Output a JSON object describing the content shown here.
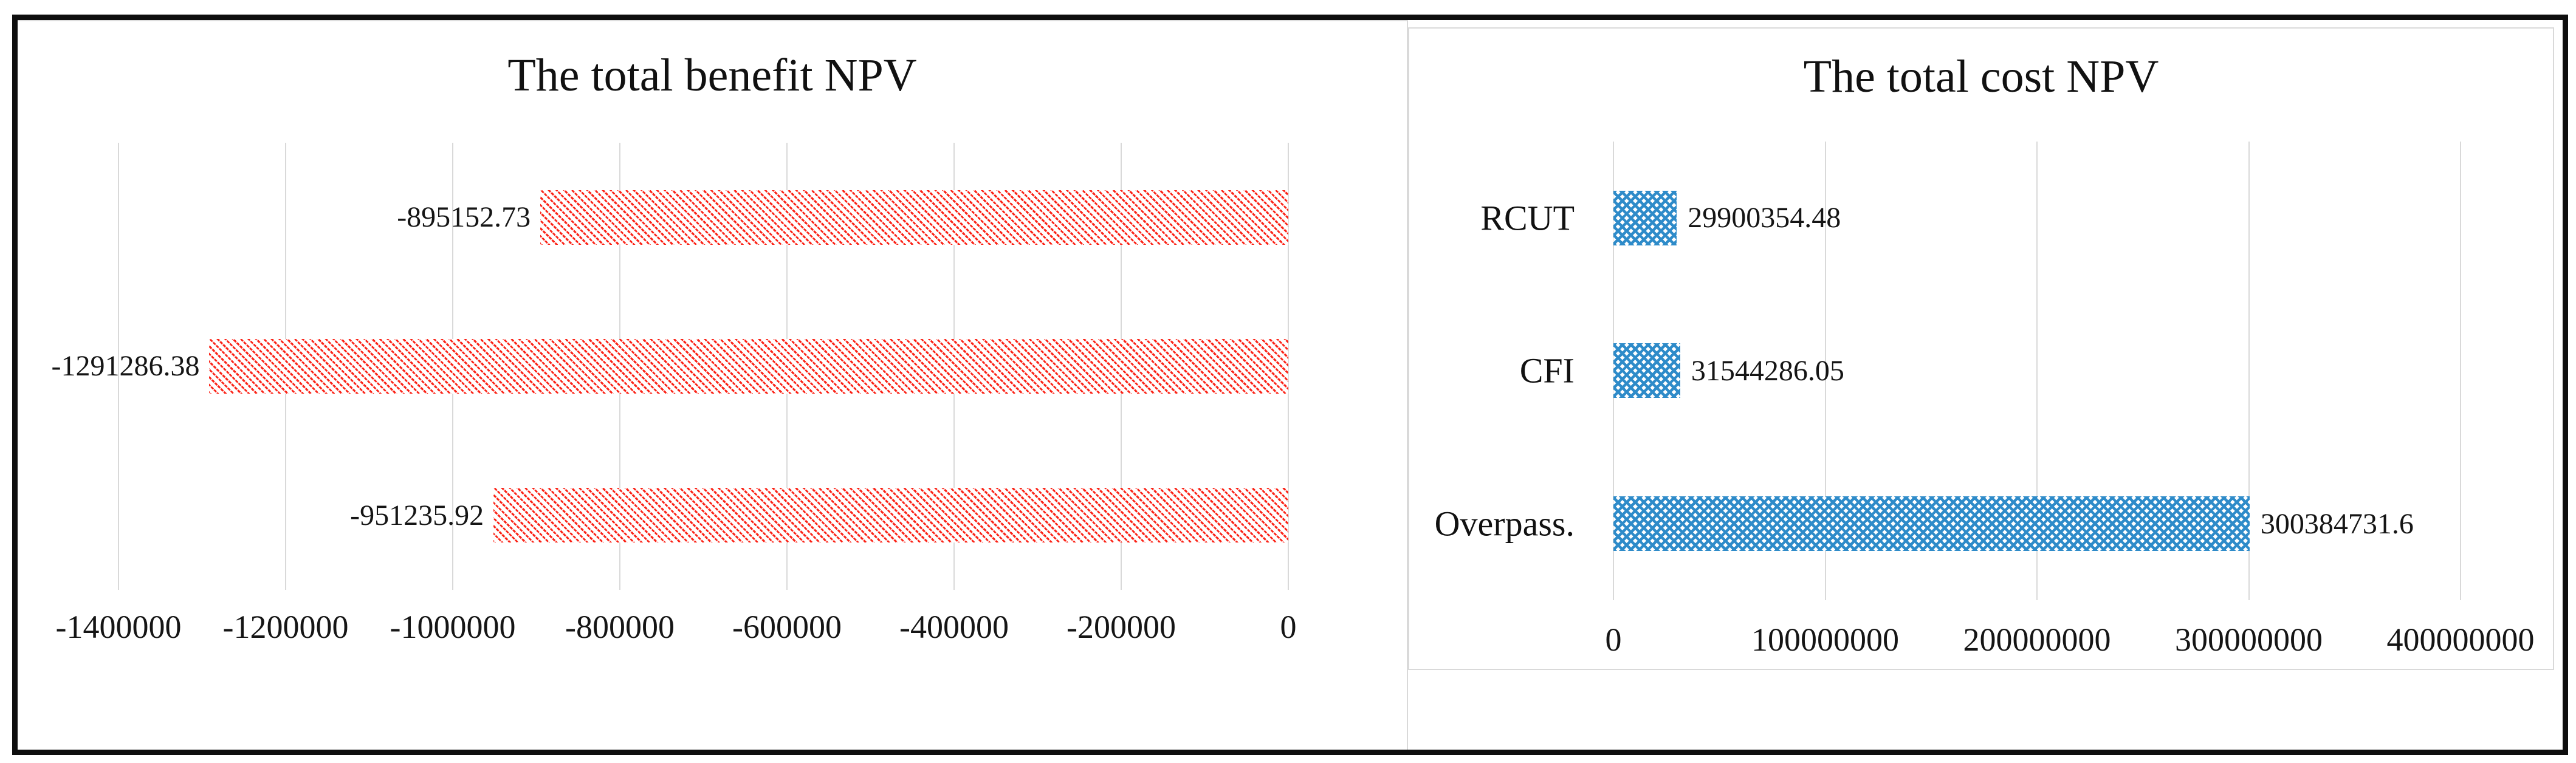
{
  "figure": {
    "background": "#ffffff",
    "frame_color": "#0e0e0e",
    "panel_border_color": "#d9d9d9",
    "gridline_color": "#d9d9d9"
  },
  "chart_data": [
    {
      "type": "bar",
      "orientation": "horizontal",
      "title": "The total benefit NPV",
      "categories": [
        "",
        "",
        ""
      ],
      "values": [
        -895152.73,
        -1291286.38,
        -951235.92
      ],
      "data_labels": [
        "-895152.73",
        "-1291286.38",
        "-951235.92"
      ],
      "xlim": [
        -1400000,
        0
      ],
      "x_ticks": [
        "-1400000",
        "-1200000",
        "-1000000",
        "-800000",
        "-600000",
        "-400000",
        "-200000",
        "0"
      ],
      "bars_anchor": "right",
      "bar_color": "#fb2317",
      "pattern": "red-diagonal-hatch",
      "grid": true,
      "legend": "none"
    },
    {
      "type": "bar",
      "orientation": "horizontal",
      "title": "The total cost NPV",
      "categories": [
        "RCUT",
        "CFI",
        "Overpass."
      ],
      "values": [
        29900354.48,
        31544286.05,
        300384731.6
      ],
      "data_labels": [
        "29900354.48",
        "31544286.05",
        "300384731.6"
      ],
      "xlim": [
        0,
        400000000
      ],
      "x_ticks": [
        "0",
        "100000000",
        "200000000",
        "300000000",
        "400000000"
      ],
      "bars_anchor": "left",
      "bar_color": "#2e8bc9",
      "pattern": "blue-diamond-crosshatch",
      "grid": true,
      "legend": "none"
    }
  ]
}
